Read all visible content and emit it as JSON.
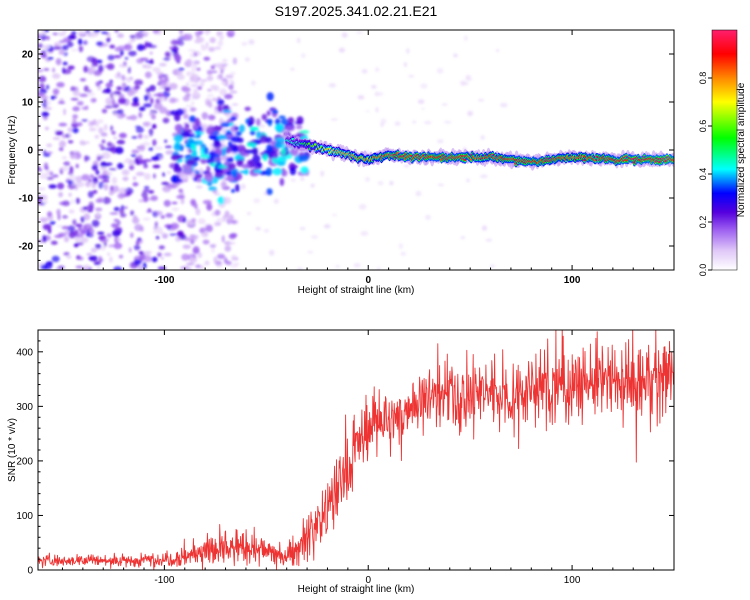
{
  "title": "S197.2025.341.02.21.E21",
  "chart_data": [
    {
      "type": "heatmap",
      "title": "S197.2025.341.02.21.E21",
      "xlabel": "Height of straight line (km)",
      "ylabel": "Frequency (Hz)",
      "xlim": [
        -162,
        150
      ],
      "ylim": [
        -25,
        25
      ],
      "xticks": [
        -100,
        0,
        100
      ],
      "yticks": [
        -20,
        -10,
        0,
        10,
        20
      ],
      "colorbar": {
        "label": "Normalized spectral amplitude",
        "range": [
          0,
          1
        ],
        "ticks": [
          0.0,
          0.2,
          0.4,
          0.6,
          0.8
        ],
        "colors": [
          "#ffffff",
          "#e0c8f8",
          "#9b5cf0",
          "#5500dd",
          "#0000ff",
          "#00ffff",
          "#00ff00",
          "#ffff00",
          "#ff8800",
          "#ff0000",
          "#ff1f6e"
        ]
      },
      "ridge": {
        "description": "Narrow high-amplitude frequency ridge near 0 Hz, drifting from about +1 Hz at -30 km to about -2 Hz above 20 km",
        "x": [
          -40,
          -30,
          -20,
          -10,
          0,
          10,
          20,
          40,
          60,
          80,
          100,
          120,
          150
        ],
        "frequency": [
          2,
          1,
          0,
          -1,
          -2,
          -1,
          -1.5,
          -1.5,
          -1.5,
          -2.5,
          -1.5,
          -2,
          -2
        ],
        "amplitude": [
          0.35,
          0.5,
          0.65,
          0.7,
          0.75,
          0.8,
          0.85,
          0.85,
          0.8,
          0.85,
          0.8,
          0.85,
          0.9
        ]
      },
      "noise_region": {
        "x_range": [
          -162,
          -90
        ],
        "frequency_range": [
          -25,
          25
        ],
        "amplitude": 0.25
      }
    },
    {
      "type": "line",
      "xlabel": "Height of straight line (km)",
      "ylabel": "SNR (10 * v/v)",
      "xlim": [
        -162,
        150
      ],
      "ylim": [
        0,
        440
      ],
      "xticks": [
        -100,
        0,
        100
      ],
      "yticks": [
        0,
        100,
        200,
        300,
        400
      ],
      "series": [
        {
          "name": "SNR",
          "color": "#ee3333",
          "x": [
            -162,
            -140,
            -120,
            -100,
            -90,
            -80,
            -70,
            -60,
            -50,
            -40,
            -35,
            -30,
            -25,
            -20,
            -15,
            -10,
            -5,
            0,
            5,
            10,
            15,
            20,
            25,
            30,
            40,
            50,
            60,
            70,
            80,
            90,
            100,
            110,
            120,
            130,
            140,
            150
          ],
          "mean": [
            18,
            18,
            17,
            20,
            25,
            35,
            40,
            40,
            35,
            25,
            40,
            60,
            90,
            110,
            150,
            180,
            230,
            260,
            280,
            260,
            280,
            300,
            310,
            320,
            320,
            320,
            330,
            320,
            330,
            335,
            340,
            345,
            345,
            340,
            350,
            355
          ],
          "noise": [
            8,
            8,
            8,
            10,
            15,
            20,
            25,
            25,
            20,
            12,
            25,
            30,
            35,
            40,
            45,
            45,
            45,
            40,
            40,
            35,
            35,
            40,
            40,
            40,
            45,
            45,
            45,
            45,
            50,
            50,
            50,
            50,
            55,
            55,
            55,
            55
          ]
        }
      ]
    }
  ]
}
